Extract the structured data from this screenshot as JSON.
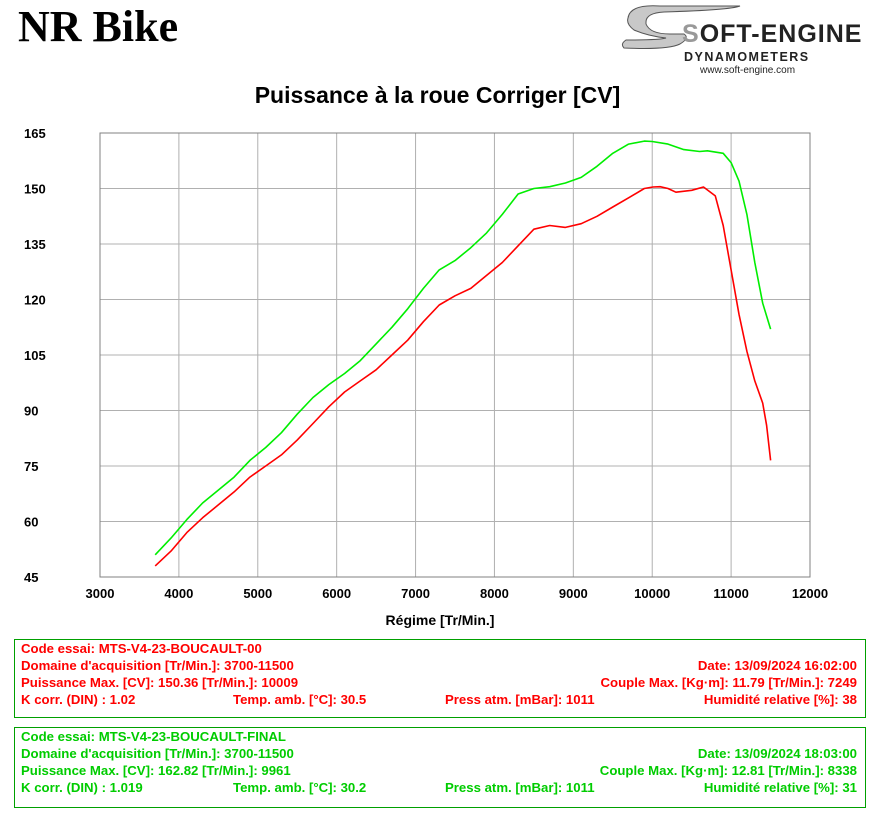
{
  "header": {
    "title": "NR Bike",
    "logo": {
      "word": "OFT-ENGINE",
      "initial": "S",
      "subtitle": "DYNAMOMETERS",
      "url": "www.soft-engine.com"
    }
  },
  "chart_data": {
    "type": "line",
    "title": "Puissance à la roue Corriger [CV]",
    "xlabel": "Régime [Tr/Min.]",
    "ylabel": "",
    "xlim": [
      3000,
      12000
    ],
    "ylim": [
      45,
      165
    ],
    "xticks": [
      3000,
      4000,
      5000,
      6000,
      7000,
      8000,
      9000,
      10000,
      11000,
      12000
    ],
    "yticks": [
      45,
      60,
      75,
      90,
      105,
      120,
      135,
      150,
      165
    ],
    "grid": true,
    "series": [
      {
        "name": "MTS-V4-23-BOUCAULT-00",
        "color": "#ff0000",
        "points": [
          [
            3700,
            48
          ],
          [
            3900,
            52
          ],
          [
            4100,
            57
          ],
          [
            4300,
            61
          ],
          [
            4500,
            64.5
          ],
          [
            4700,
            68
          ],
          [
            4900,
            72
          ],
          [
            5100,
            75
          ],
          [
            5300,
            78
          ],
          [
            5500,
            82
          ],
          [
            5700,
            86.5
          ],
          [
            5900,
            91
          ],
          [
            6100,
            95
          ],
          [
            6300,
            98
          ],
          [
            6500,
            101
          ],
          [
            6700,
            105
          ],
          [
            6900,
            109
          ],
          [
            7100,
            114
          ],
          [
            7300,
            118.5
          ],
          [
            7500,
            121
          ],
          [
            7700,
            123
          ],
          [
            7900,
            126.5
          ],
          [
            8100,
            130
          ],
          [
            8300,
            134.5
          ],
          [
            8500,
            139
          ],
          [
            8700,
            140
          ],
          [
            8900,
            139.5
          ],
          [
            9100,
            140.5
          ],
          [
            9300,
            142.5
          ],
          [
            9500,
            145
          ],
          [
            9700,
            147.5
          ],
          [
            9900,
            150
          ],
          [
            10009,
            150.4
          ],
          [
            10100,
            150.5
          ],
          [
            10200,
            150
          ],
          [
            10300,
            149
          ],
          [
            10500,
            149.5
          ],
          [
            10650,
            150.4
          ],
          [
            10800,
            148
          ],
          [
            10900,
            140
          ],
          [
            11000,
            128
          ],
          [
            11100,
            116
          ],
          [
            11200,
            106
          ],
          [
            11300,
            98
          ],
          [
            11400,
            92
          ],
          [
            11450,
            86
          ],
          [
            11500,
            76.5
          ]
        ]
      },
      {
        "name": "MTS-V4-23-BOUCAULT-FINAL",
        "color": "#00ee00",
        "points": [
          [
            3700,
            51
          ],
          [
            3900,
            55.5
          ],
          [
            4100,
            60.5
          ],
          [
            4300,
            65
          ],
          [
            4500,
            68.5
          ],
          [
            4700,
            72
          ],
          [
            4900,
            76.5
          ],
          [
            5100,
            80
          ],
          [
            5300,
            84
          ],
          [
            5500,
            89
          ],
          [
            5700,
            93.5
          ],
          [
            5900,
            97
          ],
          [
            6100,
            100
          ],
          [
            6300,
            103.5
          ],
          [
            6500,
            108
          ],
          [
            6700,
            112.5
          ],
          [
            6900,
            117.5
          ],
          [
            7100,
            123
          ],
          [
            7300,
            128
          ],
          [
            7500,
            130.5
          ],
          [
            7700,
            134
          ],
          [
            7900,
            138
          ],
          [
            8100,
            143
          ],
          [
            8300,
            148.5
          ],
          [
            8500,
            150
          ],
          [
            8700,
            150.5
          ],
          [
            8900,
            151.5
          ],
          [
            9100,
            153
          ],
          [
            9300,
            156
          ],
          [
            9500,
            159.5
          ],
          [
            9700,
            162
          ],
          [
            9900,
            162.8
          ],
          [
            10000,
            162.7
          ],
          [
            10200,
            162
          ],
          [
            10400,
            160.5
          ],
          [
            10600,
            160
          ],
          [
            10700,
            160.2
          ],
          [
            10900,
            159.5
          ],
          [
            11000,
            157
          ],
          [
            11100,
            152
          ],
          [
            11200,
            143
          ],
          [
            11300,
            130
          ],
          [
            11400,
            119
          ],
          [
            11500,
            112
          ]
        ]
      }
    ]
  },
  "tests": [
    {
      "code": "Code essai: MTS-V4-23-BOUCAULT-00",
      "domaine": "Domaine d'acquisition [Tr/Min.]: 3700-11500",
      "date": "Date: 13/09/2024   16:02:00",
      "puissance": "Puissance Max. [CV]: 150.36   [Tr/Min.]: 10009",
      "couple": "Couple Max. [Kg·m]: 11.79   [Tr/Min.]: 7249",
      "kcorr": "K corr. (DIN) : 1.02",
      "temp": "Temp. amb. [°C]: 30.5",
      "press": "Press atm. [mBar]: 1011",
      "humid": "Humidité relative [%]: 38"
    },
    {
      "code": "Code essai: MTS-V4-23-BOUCAULT-FINAL",
      "domaine": "Domaine d'acquisition [Tr/Min.]: 3700-11500",
      "date": "Date: 13/09/2024   18:03:00",
      "puissance": "Puissance Max. [CV]: 162.82   [Tr/Min.]: 9961",
      "couple": "Couple Max. [Kg·m]: 12.81   [Tr/Min.]: 8338",
      "kcorr": "K corr. (DIN) : 1.019",
      "temp": "Temp. amb. [°C]: 30.2",
      "press": "Press atm. [mBar]: 1011",
      "humid": "Humidité relative [%]: 31"
    }
  ]
}
